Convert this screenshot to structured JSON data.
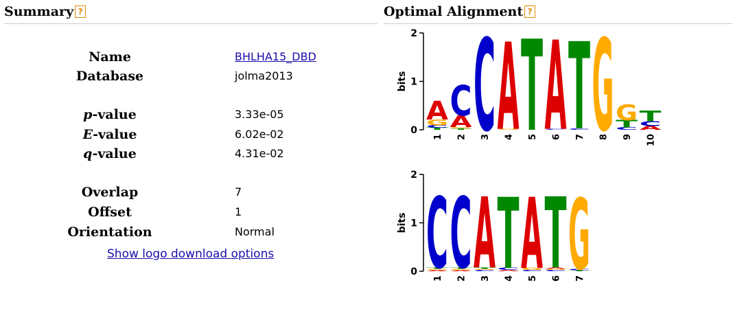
{
  "summary": {
    "title": "Summary",
    "help": "?",
    "rows": [
      {
        "label": "Name",
        "value": "BHLHA15_DBD",
        "link": true
      },
      {
        "label": "Database",
        "value": "jolma2013"
      },
      {
        "label_em": "p",
        "label_rest": "-value",
        "value": "3.33e-05"
      },
      {
        "label_em": "E",
        "label_rest": "-value",
        "value": "6.02e-02"
      },
      {
        "label_em": "q",
        "label_rest": "-value",
        "value": "4.31e-02"
      },
      {
        "label": "Overlap",
        "value": "7"
      },
      {
        "label": "Offset",
        "value": "1"
      },
      {
        "label": "Orientation",
        "value": "Normal"
      }
    ],
    "download_link": "Show logo download options"
  },
  "alignment": {
    "title": "Optimal Alignment",
    "help": "?",
    "y_label": "bits",
    "y_ticks": [
      "0",
      "1",
      "2"
    ],
    "colors": {
      "A": "#dd0000",
      "C": "#0000cc",
      "G": "#ffaa00",
      "T": "#008800"
    },
    "logo1": {
      "positions": [
        "1",
        "2",
        "3",
        "4",
        "5",
        "6",
        "7",
        "8",
        "9",
        "10"
      ],
      "stacks": [
        [
          [
            "T",
            0.04
          ],
          [
            "C",
            0.05
          ],
          [
            "G",
            0.12
          ],
          [
            "A",
            0.38
          ]
        ],
        [
          [
            "T",
            0.03
          ],
          [
            "G",
            0.03
          ],
          [
            "A",
            0.24
          ],
          [
            "C",
            0.62
          ]
        ],
        [
          [
            "C",
            1.88
          ]
        ],
        [
          [
            "G",
            0.02
          ],
          [
            "A",
            1.78
          ]
        ],
        [
          [
            "T",
            1.86
          ]
        ],
        [
          [
            "C",
            0.02
          ],
          [
            "A",
            1.82
          ]
        ],
        [
          [
            "C",
            0.03
          ],
          [
            "T",
            1.78
          ]
        ],
        [
          [
            "G",
            1.88
          ]
        ],
        [
          [
            "C",
            0.05
          ],
          [
            "T",
            0.15
          ],
          [
            "G",
            0.32
          ]
        ],
        [
          [
            "A",
            0.08
          ],
          [
            "C",
            0.1
          ],
          [
            "T",
            0.22
          ]
        ]
      ]
    },
    "logo2": {
      "positions": [
        "1",
        "2",
        "3",
        "4",
        "5",
        "6",
        "7"
      ],
      "stacks": [
        [
          [
            "A",
            0.02
          ],
          [
            "G",
            0.03
          ],
          [
            "T",
            0.03
          ],
          [
            "C",
            1.45
          ]
        ],
        [
          [
            "A",
            0.02
          ],
          [
            "G",
            0.03
          ],
          [
            "T",
            0.03
          ],
          [
            "C",
            1.45
          ]
        ],
        [
          [
            "C",
            0.03
          ],
          [
            "G",
            0.02
          ],
          [
            "T",
            0.03
          ],
          [
            "A",
            1.45
          ]
        ],
        [
          [
            "A",
            0.03
          ],
          [
            "C",
            0.04
          ],
          [
            "T",
            1.45
          ]
        ],
        [
          [
            "C",
            0.03
          ],
          [
            "G",
            0.04
          ],
          [
            "A",
            1.45
          ]
        ],
        [
          [
            "C",
            0.03
          ],
          [
            "G",
            0.02
          ],
          [
            "A",
            0.03
          ],
          [
            "T",
            1.45
          ]
        ],
        [
          [
            "T",
            0.02
          ],
          [
            "C",
            0.03
          ],
          [
            "G",
            1.45
          ]
        ]
      ]
    }
  }
}
